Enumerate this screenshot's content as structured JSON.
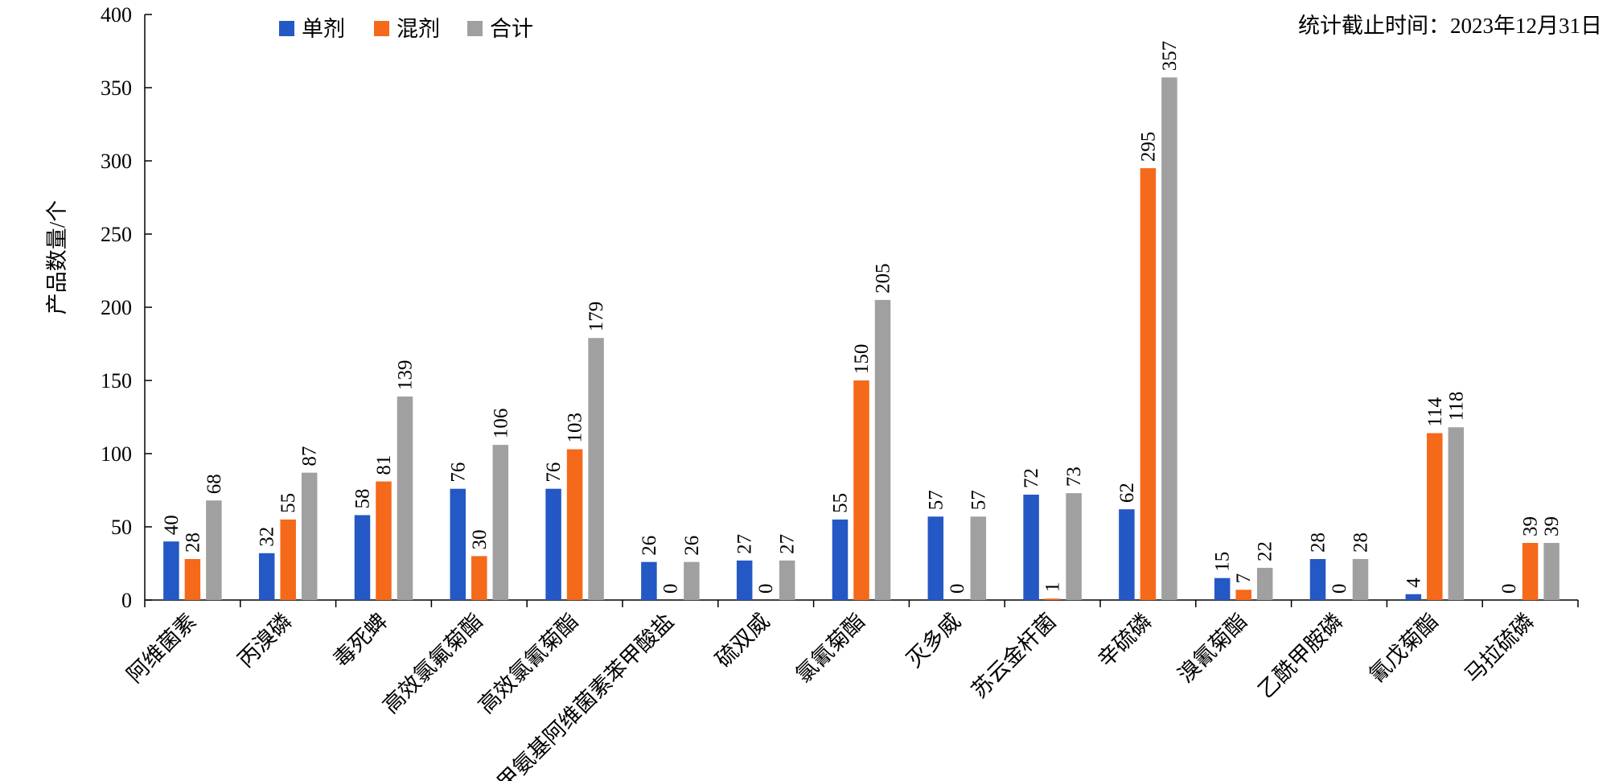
{
  "note": "统计截止时间：2023年12月31日",
  "colors": {
    "single": "#2458c4",
    "mixed": "#f5691b",
    "total": "#a0a0a0"
  },
  "chart_data": {
    "type": "bar",
    "title": "",
    "xlabel": "",
    "ylabel": "产品数量/个",
    "ylim": [
      0,
      400
    ],
    "yticks": [
      0,
      50,
      100,
      150,
      200,
      250,
      300,
      350,
      400
    ],
    "legend": "top-left",
    "grid": false,
    "categories": [
      "阿维菌素",
      "丙溴磷",
      "毒死蜱",
      "高效氯氟菊酯",
      "高效氯氰菊酯",
      "甲氨基阿维菌素苯甲酸盐",
      "硫双威",
      "氯氰菊酯",
      "灭多威",
      "苏云金杆菌",
      "辛硫磷",
      "溴氰菊酯",
      "乙酰甲胺磷",
      "氰戊菊酯",
      "马拉硫磷"
    ],
    "series": [
      {
        "name": "单剂",
        "values": [
          40,
          32,
          58,
          76,
          76,
          26,
          27,
          55,
          57,
          72,
          62,
          15,
          28,
          4,
          0
        ]
      },
      {
        "name": "混剂",
        "values": [
          28,
          55,
          81,
          30,
          103,
          0,
          0,
          150,
          0,
          1,
          295,
          7,
          0,
          114,
          39
        ]
      },
      {
        "name": "合计",
        "values": [
          68,
          87,
          139,
          106,
          179,
          26,
          27,
          205,
          57,
          73,
          357,
          22,
          28,
          118,
          39
        ]
      }
    ]
  }
}
